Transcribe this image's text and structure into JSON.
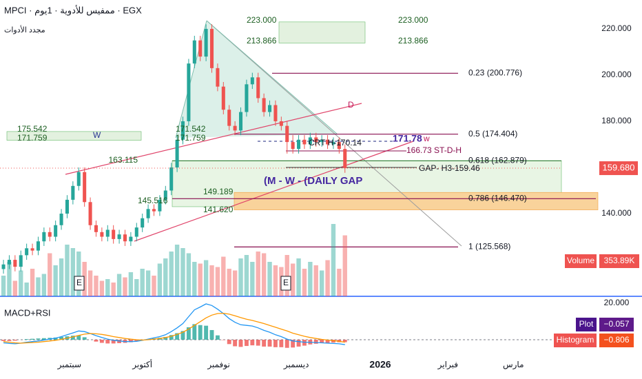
{
  "chart_data": {
    "type": "candlestick",
    "title": "MPCI · ممفيس للأدوية · 1يوم · EGX",
    "subtitle": "مجدد الأدوات",
    "up_color": "#26a69a",
    "down_color": "#ef5350",
    "xlim": [
      -0.6,
      96.4
    ],
    "xticks": [
      {
        "value": 11.4,
        "label": "سبتمبر"
      },
      {
        "value": 24,
        "label": "أكتوبر"
      },
      {
        "value": 37.2,
        "label": "نوفمبر"
      },
      {
        "value": 50.6,
        "label": "ديسمبر"
      },
      {
        "value": 65.1,
        "label": "2026"
      },
      {
        "value": 76.8,
        "label": "فبراير"
      },
      {
        "value": 88.1,
        "label": "مارس"
      }
    ],
    "ylim": [
      104.2,
      232.5
    ],
    "yticks": [
      {
        "value": 140,
        "label": "140.000"
      },
      {
        "value": 160,
        "label": "160.000"
      },
      {
        "value": 180,
        "label": "180.000"
      },
      {
        "value": 200,
        "label": "200.000"
      },
      {
        "value": 220,
        "label": "220.000"
      }
    ],
    "open": [
      116,
      118,
      120,
      117,
      122,
      125,
      124,
      128,
      132,
      130,
      135,
      140,
      146,
      152,
      158,
      145,
      135,
      132,
      130,
      133,
      129,
      131,
      128,
      130,
      134,
      138,
      142,
      141,
      146,
      150,
      160,
      172,
      180,
      205,
      215,
      208,
      220,
      203,
      195,
      185,
      178,
      176,
      184,
      196,
      199,
      190,
      184,
      187,
      180,
      178,
      171,
      168,
      172,
      170,
      173,
      171,
      172,
      170,
      171,
      168
    ],
    "high": [
      120,
      122,
      122,
      124,
      127,
      127,
      130,
      134,
      134,
      137,
      142,
      148,
      154,
      160,
      160,
      147,
      137,
      134,
      135,
      135,
      133,
      133,
      132,
      136,
      140,
      144,
      144,
      148,
      152,
      162,
      174,
      182,
      207,
      217,
      217,
      222,
      222,
      205,
      197,
      187,
      180,
      186,
      198,
      201,
      201,
      192,
      189,
      189,
      182,
      180,
      174,
      174,
      174,
      175,
      175,
      174,
      174,
      173,
      173,
      170
    ],
    "low": [
      114,
      116,
      115,
      115,
      120,
      122,
      122,
      126,
      128,
      128,
      133,
      138,
      144,
      150,
      143,
      133,
      130,
      128,
      128,
      127,
      127,
      126,
      126,
      128,
      132,
      136,
      139,
      139,
      144,
      148,
      158,
      170,
      178,
      203,
      206,
      206,
      201,
      193,
      183,
      176,
      174,
      174,
      182,
      194,
      188,
      182,
      182,
      178,
      176,
      166,
      166,
      166,
      168,
      168,
      169,
      169,
      168,
      168,
      166,
      157.68
    ],
    "close": [
      118,
      120,
      117,
      122,
      125,
      124,
      128,
      132,
      130,
      135,
      140,
      146,
      152,
      158,
      145,
      135,
      132,
      130,
      133,
      129,
      131,
      128,
      130,
      134,
      138,
      142,
      141,
      146,
      150,
      160,
      172,
      180,
      205,
      215,
      208,
      220,
      203,
      195,
      185,
      178,
      176,
      184,
      196,
      199,
      190,
      184,
      187,
      180,
      178,
      171,
      168,
      172,
      170,
      173,
      171,
      172,
      170,
      171,
      168,
      159.68
    ],
    "volume": [
      120,
      200,
      90,
      150,
      80,
      160,
      110,
      130,
      250,
      180,
      220,
      300,
      280,
      260,
      200,
      150,
      120,
      90,
      100,
      80,
      130,
      110,
      140,
      100,
      160,
      150,
      120,
      190,
      220,
      260,
      300,
      280,
      250,
      200,
      190,
      210,
      180,
      170,
      230,
      160,
      150,
      220,
      240,
      200,
      260,
      250,
      200,
      180,
      170,
      240,
      190,
      220,
      160,
      200,
      180,
      150,
      210,
      420,
      160,
      353.89
    ],
    "last_price": {
      "value": 159.68,
      "label": "159.680"
    },
    "volume_label": "Volume",
    "volume_value": "353.89K",
    "levels": [
      {
        "value": 200.776,
        "label": "0.23 (200.776)",
        "color": "#880e4f"
      },
      {
        "value": 174.404,
        "label": "0.5 (174.404)",
        "color": "#880e4f"
      },
      {
        "value": 162.879,
        "label": "0.618 (162.879)",
        "color": "#2e7d32"
      },
      {
        "value": 146.47,
        "label": "0.786 (146.470)",
        "color": "#880e4f"
      },
      {
        "value": 125.568,
        "label": "1 (125.568)",
        "color": "#880e4f"
      }
    ],
    "zones": [
      {
        "from": 223,
        "to": 213.866,
        "color": "#e3f1df"
      },
      {
        "from": 175.542,
        "to": 171.759,
        "color": "#e3f1df"
      },
      {
        "from": 162.879,
        "to": 143,
        "color": "#e8f5e4"
      },
      {
        "from": 149.189,
        "to": 141.62,
        "color": "#f9d39b"
      }
    ],
    "annotations": [
      "223.000",
      "213.866",
      "223.000",
      "213.866",
      "175.542",
      "171.759",
      "W",
      "171.542",
      "171.759",
      "163.115",
      "CRT H-170.14",
      "171.78",
      "w",
      "166.73 ST-D-H",
      "GAP- H3-159.46",
      "(M - W - (DAILY GAP",
      "149.189",
      "145.516",
      "141.620",
      "D",
      "E",
      "E"
    ],
    "macd": {
      "title": "MACD+RSI",
      "scale_label": "20.000",
      "macd_color": "#2196f3",
      "signal_color": "#ff9800",
      "macd": [
        -1,
        -1.2,
        -1.3,
        -1.1,
        -0.8,
        -0.6,
        -0.4,
        -0.1,
        0.2,
        0.5,
        1,
        1.6,
        2.2,
        2.8,
        2.6,
        2.0,
        1.3,
        0.7,
        0.2,
        -0.2,
        -0.4,
        -0.6,
        -0.6,
        -0.5,
        -0.2,
        0.2,
        0.6,
        1.0,
        1.6,
        2.6,
        3.8,
        5.2,
        7.4,
        9.6,
        10.5,
        11.5,
        11.0,
        9.8,
        8.4,
        6.8,
        5.6,
        4.8,
        4.6,
        4.4,
        3.8,
        3.0,
        2.4,
        1.6,
        1.0,
        0.2,
        -0.4,
        -0.6,
        -0.8,
        -0.8,
        -0.9,
        -1.0,
        -1.1,
        -1.2,
        -1.3,
        -1.6
      ],
      "signal": [
        -0.6,
        -0.8,
        -1.0,
        -1.1,
        -1.0,
        -0.9,
        -0.8,
        -0.6,
        -0.4,
        -0.2,
        0.1,
        0.5,
        0.9,
        1.4,
        1.8,
        2.0,
        1.9,
        1.7,
        1.4,
        1.0,
        0.7,
        0.4,
        0.2,
        0,
        -0.1,
        0,
        0.2,
        0.4,
        0.7,
        1.1,
        1.7,
        2.4,
        3.4,
        4.6,
        5.8,
        7.0,
        7.9,
        8.4,
        8.5,
        8.2,
        7.7,
        7.1,
        6.6,
        6.2,
        5.7,
        5.2,
        4.6,
        4.0,
        3.4,
        2.8,
        2.1,
        1.6,
        1.1,
        0.7,
        0.4,
        0.1,
        -0.1,
        -0.3,
        -0.5,
        -0.8
      ],
      "histogram": [
        -0.4,
        -0.4,
        -0.3,
        0,
        0.2,
        0.3,
        0.4,
        0.5,
        0.6,
        0.7,
        0.9,
        1.1,
        1.3,
        1.4,
        0.8,
        0,
        -0.6,
        -1.0,
        -1.2,
        -1.2,
        -1.1,
        -1.0,
        -0.8,
        -0.5,
        -0.1,
        0.2,
        0.4,
        0.6,
        0.9,
        1.5,
        2.1,
        2.8,
        4.0,
        5.0,
        4.7,
        4.5,
        3.1,
        1.4,
        -0.1,
        -1.4,
        -2.1,
        -2.3,
        -2.0,
        -1.8,
        -1.9,
        -2.2,
        -2.2,
        -2.4,
        -2.4,
        -2.6,
        -2.5,
        -2.2,
        -1.9,
        -1.5,
        -1.3,
        -1.1,
        -1.0,
        -0.9,
        -0.8,
        -0.8
      ],
      "plot_label": "Plot",
      "plot_value": "−0.057",
      "hist_label": "Histogram",
      "hist_value": "−0.806"
    }
  }
}
